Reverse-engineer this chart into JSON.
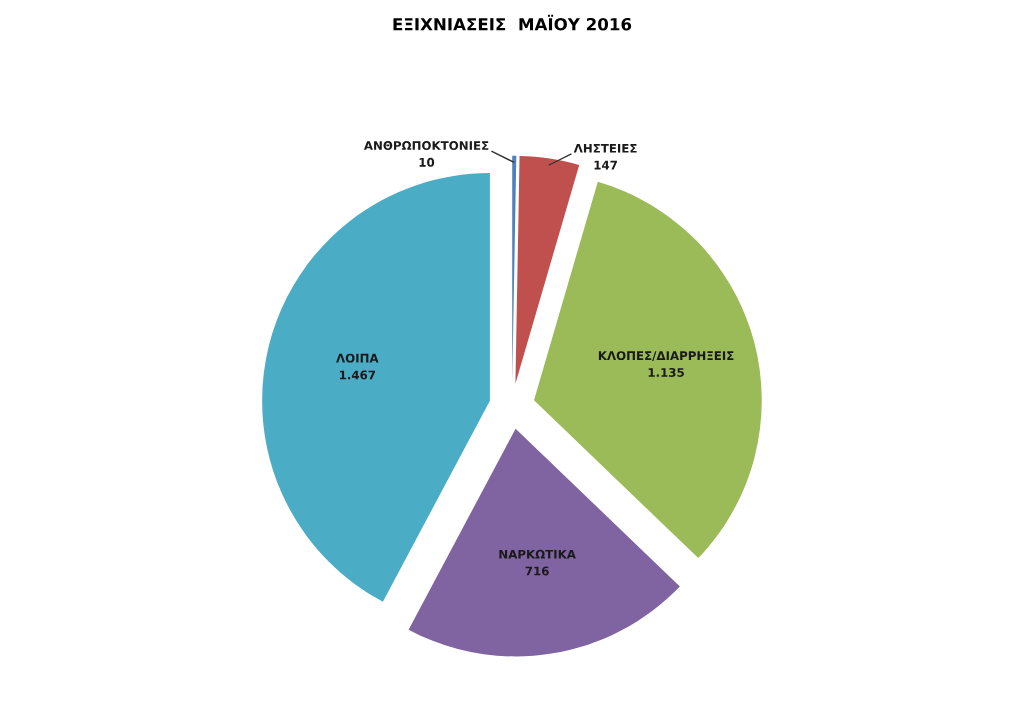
{
  "chart_data": {
    "type": "pie",
    "title": "ΕΞΙΧΝΙΑΣΕΙΣ  ΜΑΪΟΥ 2016",
    "categories": [
      "ΑΝΘΡΩΠΟΚΤΟΝΙΕΣ",
      "ΛΗΣΤΕΙΕΣ",
      "ΚΛΟΠΕΣ/ΔΙΑΡΡΗΞΕΙΣ",
      "ΝΑΡΚΩΤΙΚΑ",
      "ΛΟΙΠΑ"
    ],
    "values": [
      10,
      147,
      1135,
      716,
      1467
    ],
    "value_labels": [
      "10",
      "147",
      "1.135",
      "716",
      "1.467"
    ],
    "colors": [
      "#4f81bd",
      "#c0504d",
      "#9bbb59",
      "#8064a2",
      "#4bacc6"
    ]
  }
}
